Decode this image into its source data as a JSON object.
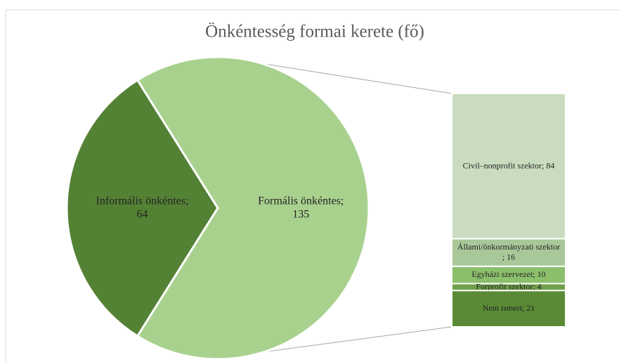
{
  "chart_data": {
    "type": "pie-of-bar",
    "title": "Önkéntesség formai kerete (fő)",
    "categories": [
      "Informális önkéntes",
      "Formális önkéntes"
    ],
    "values": [
      64,
      135
    ],
    "colors": [
      "#548235",
      "#a9d18e"
    ],
    "breakdown": {
      "categories": [
        "Civil–nonprofit szektor",
        "Állami/önkormányzati szektor",
        "Egyházi szervezet",
        "Forprofit szektor",
        "Nem ismert"
      ],
      "values": [
        84,
        16,
        10,
        4,
        21
      ],
      "colors": [
        "#c9dcbf",
        "#a9c89a",
        "#8cbf6c",
        "#6fa04a",
        "#5a8a36"
      ]
    }
  }
}
